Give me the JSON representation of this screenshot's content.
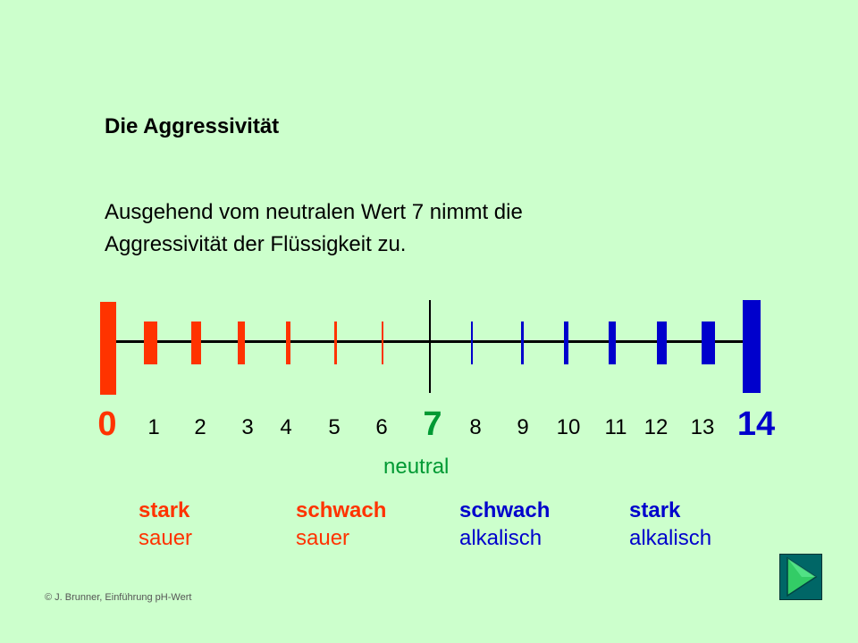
{
  "slide": {
    "title": "Die Aggressivität",
    "description_line1": "Ausgehend vom neutralen Wert 7 nimmt die",
    "description_line2": "Aggressivität der Flüssigkeit zu."
  },
  "scale": {
    "labels": [
      "0",
      "1",
      "2",
      "3",
      "4",
      "5",
      "6",
      "7",
      "8",
      "9",
      "10",
      "11",
      "12",
      "13",
      "14"
    ],
    "neutral_label": "neutral",
    "acid_color": "#ff3300",
    "neutral_color": "#009933",
    "alkaline_color": "#0000cc"
  },
  "categories": [
    {
      "strength": "stark",
      "kind": "sauer",
      "color": "#ff3300"
    },
    {
      "strength": "schwach",
      "kind": "sauer",
      "color": "#ff3300"
    },
    {
      "strength": "schwach",
      "kind": "alkalisch",
      "color": "#0000cc"
    },
    {
      "strength": "stark",
      "kind": "alkalisch",
      "color": "#0000cc"
    }
  ],
  "footer": {
    "copyright": "© J. Brunner,  Einführung pH-Wert"
  },
  "navigation": {
    "next_icon": "play-arrow-icon",
    "button_color": "#006666",
    "arrow_color": "#33cc66"
  }
}
